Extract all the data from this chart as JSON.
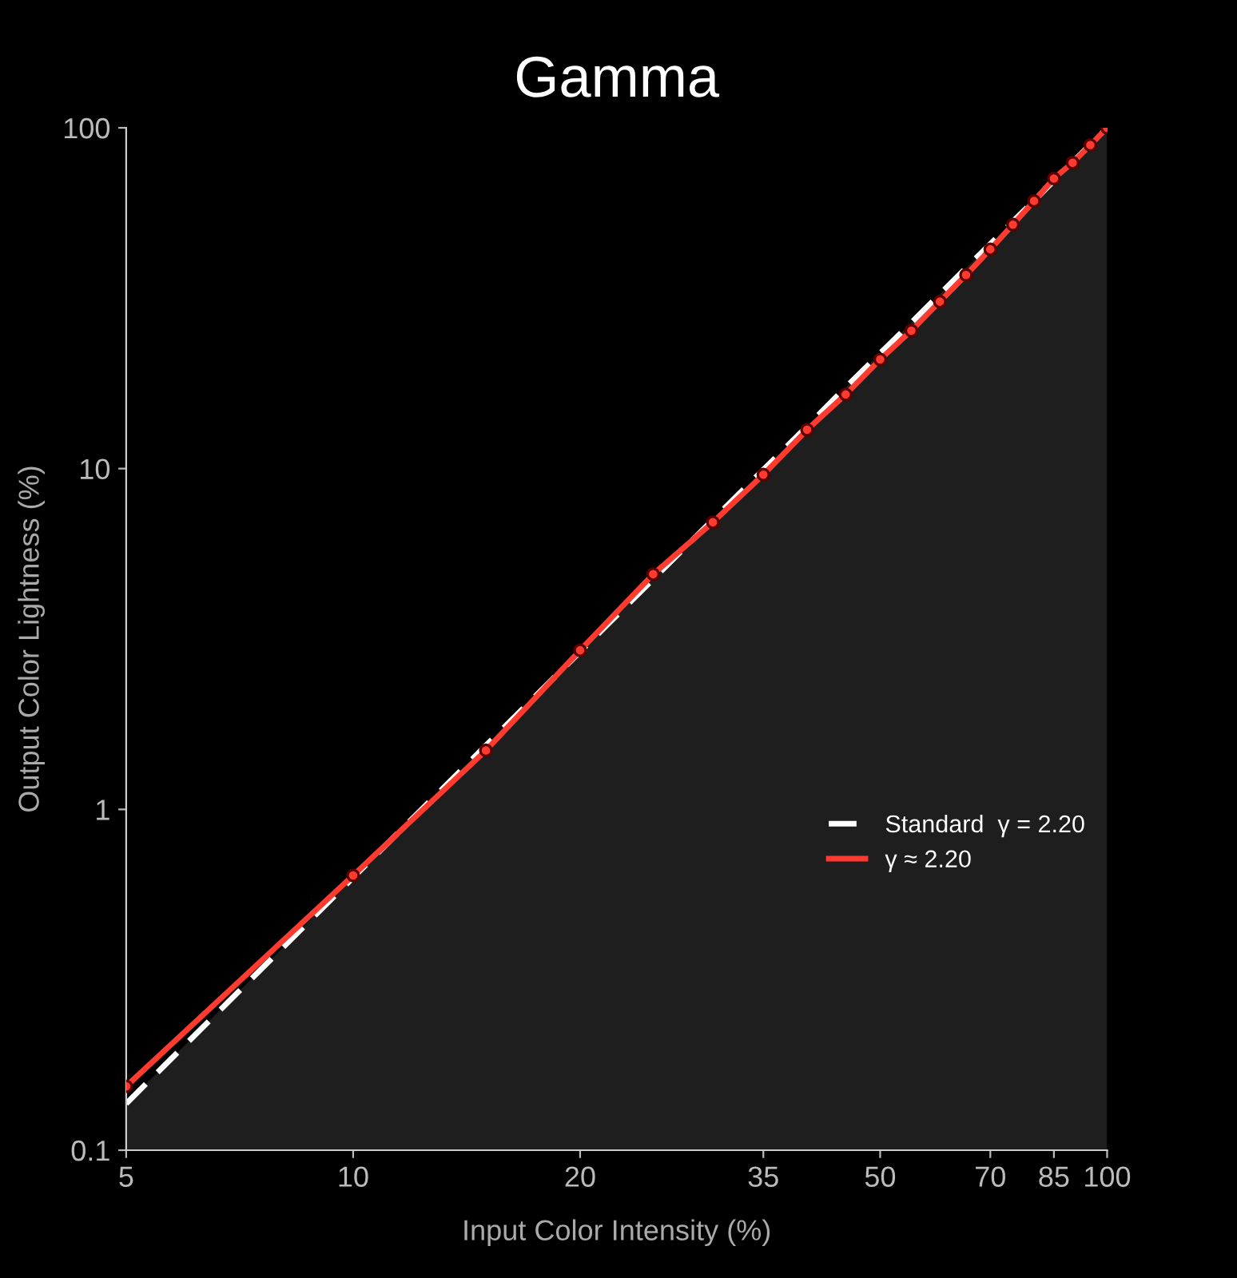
{
  "chart_data": {
    "type": "line",
    "title": "Gamma",
    "xlabel": "Input Color Intensity (%)",
    "ylabel": "Output Color Lightness (%)",
    "log": "xy",
    "xlim": [
      5,
      100
    ],
    "ylim": [
      0.1,
      100
    ],
    "xticks": [
      5,
      10,
      20,
      35,
      50,
      70,
      85,
      100
    ],
    "yticks": [
      0.1,
      1,
      10,
      100
    ],
    "grid": false,
    "legend": "right",
    "x": [
      5,
      10,
      15,
      20,
      25,
      30,
      35,
      40,
      45,
      50,
      55,
      60,
      65,
      70,
      75,
      80,
      85,
      90,
      95,
      100
    ],
    "series": [
      {
        "name": "Standard  γ = 2.20",
        "type": "area",
        "color": "#ffffff",
        "line_style": "dashed",
        "marker": "none",
        "values": [
          0.137,
          0.631,
          1.54,
          2.9,
          4.74,
          7.08,
          9.93,
          13.3,
          17.3,
          21.8,
          26.8,
          32.5,
          38.8,
          45.6,
          53.1,
          61.2,
          69.9,
          79.3,
          89.3,
          100
        ]
      },
      {
        "name": "γ ≈ 2.20",
        "color": "#ff3b30",
        "line_style": "solid",
        "marker": "circle",
        "values": [
          0.154,
          0.64,
          1.49,
          2.93,
          4.9,
          6.96,
          9.6,
          13.0,
          16.5,
          20.9,
          25.4,
          30.9,
          37,
          44,
          52,
          61,
          71,
          79,
          89,
          100
        ]
      }
    ]
  }
}
